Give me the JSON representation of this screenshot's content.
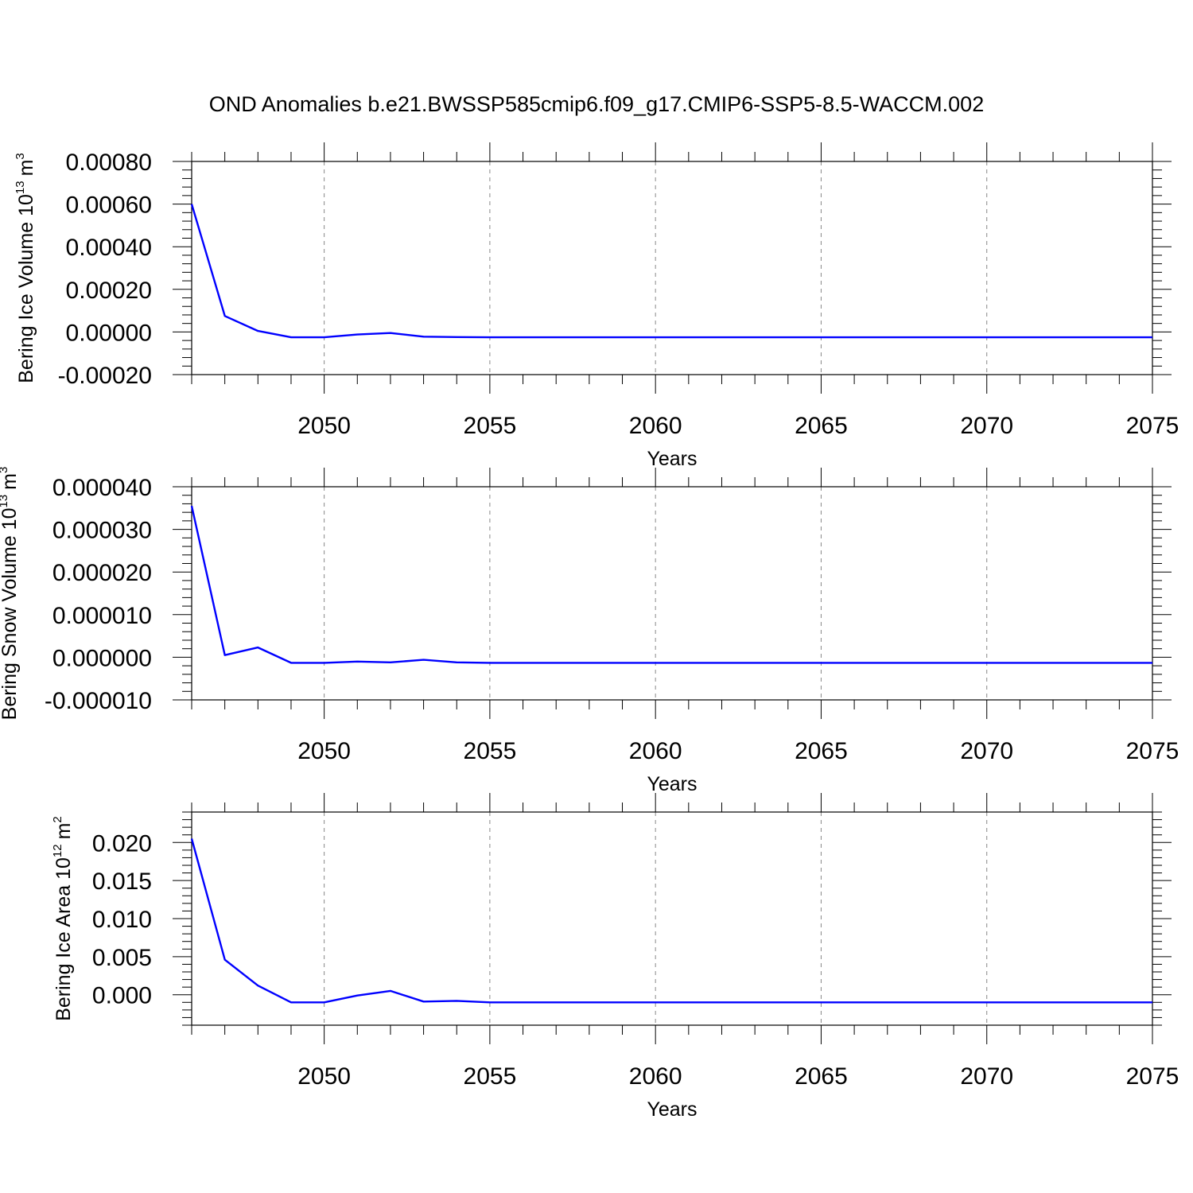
{
  "figure": {
    "title": "OND Anomalies b.e21.BWSSP585cmip6.f09_g17.CMIP6-SSP5-8.5-WACCM.002"
  },
  "chart_data": [
    {
      "type": "line",
      "title": "",
      "xlabel": "Years",
      "ylabel": "Bering Ice Volume 10",
      "ylabel_exp": "13",
      "ylabel_unit": "m",
      "ylabel_unit_exp": "3",
      "xlim": [
        2046,
        2075
      ],
      "ylim": [
        -0.0002,
        0.0008
      ],
      "yticks": [
        -0.0002,
        0.0,
        0.0002,
        0.0004,
        0.0006,
        0.0008
      ],
      "ytick_labels": [
        "-0.00020",
        "0.00000",
        "0.00020",
        "0.00040",
        "0.00060",
        "0.00080"
      ],
      "xticks": [
        2050,
        2055,
        2060,
        2065,
        2070,
        2075
      ],
      "xtick_labels": [
        "2050",
        "2055",
        "2060",
        "2065",
        "2070",
        "2075"
      ],
      "grid": "x-major-dashed",
      "line_color": "#0000ff",
      "series": [
        {
          "x": [
            2046,
            2047,
            2048,
            2049,
            2050,
            2051,
            2052,
            2053,
            2054,
            2055,
            2056,
            2057,
            2058,
            2059,
            2060,
            2061,
            2062,
            2063,
            2064,
            2065,
            2066,
            2067,
            2068,
            2069,
            2070,
            2071,
            2072,
            2073,
            2074,
            2075
          ],
          "y": [
            0.0006,
            7.5e-05,
            5e-06,
            -2.5e-05,
            -2.5e-05,
            -1.2e-05,
            -5e-06,
            -2.2e-05,
            -2.4e-05,
            -2.5e-05,
            -2.5e-05,
            -2.5e-05,
            -2.5e-05,
            -2.5e-05,
            -2.5e-05,
            -2.5e-05,
            -2.5e-05,
            -2.5e-05,
            -2.5e-05,
            -2.5e-05,
            -2.5e-05,
            -2.5e-05,
            -2.5e-05,
            -2.5e-05,
            -2.5e-05,
            -2.5e-05,
            -2.5e-05,
            -2.5e-05,
            -2.5e-05,
            -2.5e-05
          ]
        }
      ]
    },
    {
      "type": "line",
      "title": "",
      "xlabel": "Years",
      "ylabel": "Bering Snow Volume 10",
      "ylabel_exp": "13",
      "ylabel_unit": "m",
      "ylabel_unit_exp": "3",
      "xlim": [
        2046,
        2075
      ],
      "ylim": [
        -1e-05,
        4e-05
      ],
      "yticks": [
        -1e-05,
        0.0,
        1e-05,
        2e-05,
        3e-05,
        4e-05
      ],
      "ytick_labels": [
        "-0.000010",
        "0.000000",
        "0.000010",
        "0.000020",
        "0.000030",
        "0.000040"
      ],
      "xticks": [
        2050,
        2055,
        2060,
        2065,
        2070,
        2075
      ],
      "xtick_labels": [
        "2050",
        "2055",
        "2060",
        "2065",
        "2070",
        "2075"
      ],
      "grid": "x-major-dashed",
      "line_color": "#0000ff",
      "series": [
        {
          "x": [
            2046,
            2047,
            2048,
            2049,
            2050,
            2051,
            2052,
            2053,
            2054,
            2055,
            2056,
            2057,
            2058,
            2059,
            2060,
            2061,
            2062,
            2063,
            2064,
            2065,
            2066,
            2067,
            2068,
            2069,
            2070,
            2071,
            2072,
            2073,
            2074,
            2075
          ],
          "y": [
            3.55e-05,
            5e-07,
            2.3e-06,
            -1.3e-06,
            -1.3e-06,
            -1e-06,
            -1.2e-06,
            -6e-07,
            -1.2e-06,
            -1.3e-06,
            -1.3e-06,
            -1.3e-06,
            -1.3e-06,
            -1.3e-06,
            -1.3e-06,
            -1.3e-06,
            -1.3e-06,
            -1.3e-06,
            -1.3e-06,
            -1.3e-06,
            -1.3e-06,
            -1.3e-06,
            -1.3e-06,
            -1.3e-06,
            -1.3e-06,
            -1.3e-06,
            -1.3e-06,
            -1.3e-06,
            -1.3e-06,
            -1.3e-06
          ]
        }
      ]
    },
    {
      "type": "line",
      "title": "",
      "xlabel": "Years",
      "ylabel": "Bering Ice Area 10",
      "ylabel_exp": "12",
      "ylabel_unit": "m",
      "ylabel_unit_exp": "2",
      "xlim": [
        2046,
        2075
      ],
      "ylim": [
        -0.004,
        0.024
      ],
      "yticks": [
        0.0,
        0.005,
        0.01,
        0.015,
        0.02
      ],
      "ytick_labels": [
        "0.000",
        "0.005",
        "0.010",
        "0.015",
        "0.020"
      ],
      "xticks": [
        2050,
        2055,
        2060,
        2065,
        2070,
        2075
      ],
      "xtick_labels": [
        "2050",
        "2055",
        "2060",
        "2065",
        "2070",
        "2075"
      ],
      "grid": "x-major-dashed",
      "line_color": "#0000ff",
      "series": [
        {
          "x": [
            2046,
            2047,
            2048,
            2049,
            2050,
            2051,
            2052,
            2053,
            2054,
            2055,
            2056,
            2057,
            2058,
            2059,
            2060,
            2061,
            2062,
            2063,
            2064,
            2065,
            2066,
            2067,
            2068,
            2069,
            2070,
            2071,
            2072,
            2073,
            2074,
            2075
          ],
          "y": [
            0.0205,
            0.0046,
            0.0012,
            -0.001,
            -0.001,
            -0.0001,
            0.0005,
            -0.0009,
            -0.0008,
            -0.001,
            -0.001,
            -0.001,
            -0.001,
            -0.001,
            -0.001,
            -0.001,
            -0.001,
            -0.001,
            -0.001,
            -0.001,
            -0.001,
            -0.001,
            -0.001,
            -0.001,
            -0.001,
            -0.001,
            -0.001,
            -0.001,
            -0.001,
            -0.001
          ]
        }
      ]
    }
  ]
}
